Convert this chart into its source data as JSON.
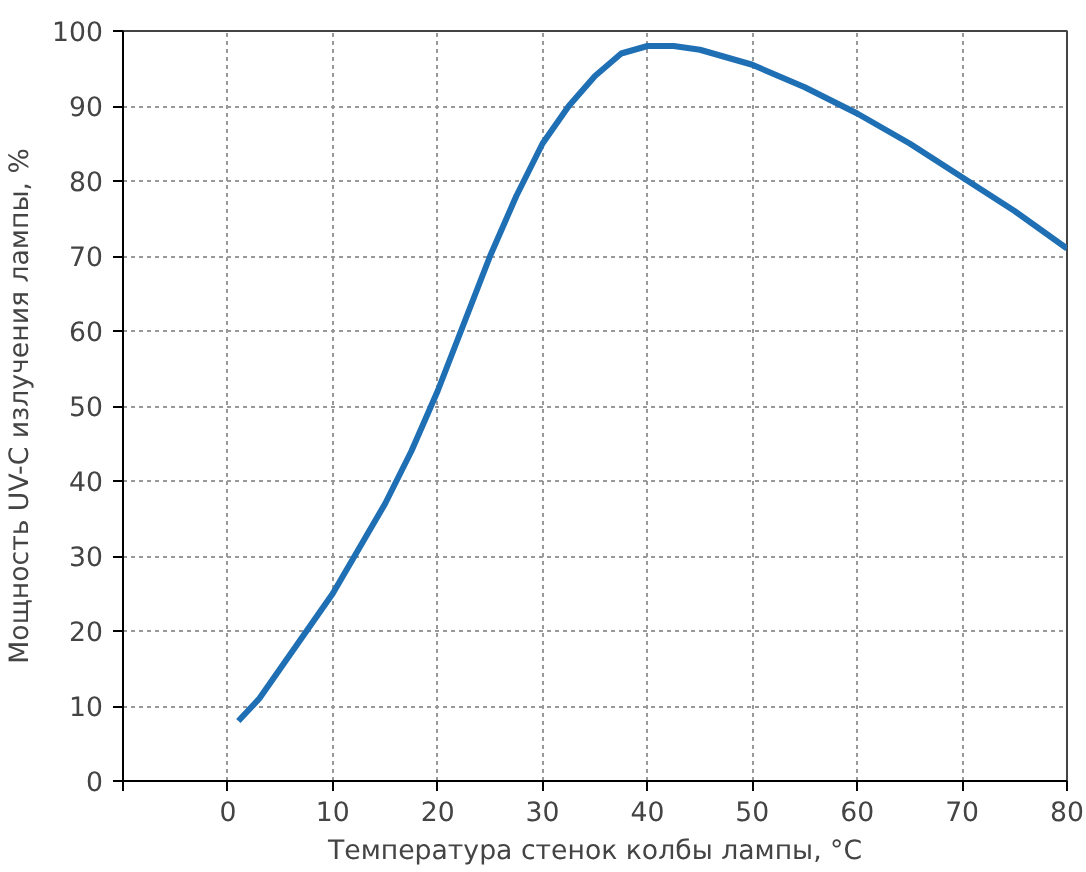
{
  "chart_data": {
    "type": "line",
    "xlabel": "Температура стенок колбы лампы, °C",
    "ylabel": "Мощность UV-C излучения лампы, %",
    "x": [
      1,
      3,
      5,
      7.5,
      10,
      12.5,
      15,
      17.5,
      20,
      22.5,
      25,
      27.5,
      30,
      32.5,
      35,
      37.5,
      40,
      42.5,
      45,
      50,
      55,
      60,
      65,
      70,
      75,
      80
    ],
    "series": [
      {
        "color": "#1f6fb5",
        "values": [
          8,
          11,
          15,
          20,
          25,
          31,
          37,
          44,
          52,
          61,
          70,
          78,
          85,
          90,
          94,
          97,
          98,
          98,
          97.5,
          95.5,
          92.5,
          89,
          85,
          80.5,
          76,
          71
        ]
      }
    ],
    "xlim": [
      -10,
      80
    ],
    "xticks": [
      {
        "value": -10,
        "label": null
      },
      0,
      10,
      20,
      30,
      40,
      50,
      60,
      70,
      80
    ],
    "ylim": [
      0,
      100
    ],
    "yticks": [
      0,
      10,
      20,
      30,
      40,
      50,
      60,
      70,
      80,
      90,
      100
    ],
    "grid": true,
    "line_style": "solid",
    "marker": "none"
  }
}
